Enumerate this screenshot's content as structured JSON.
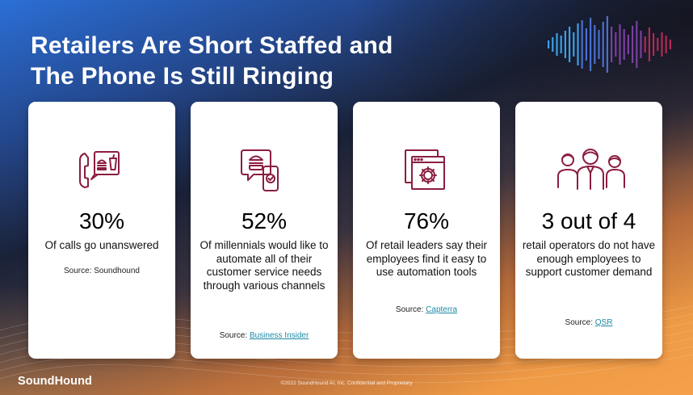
{
  "title": {
    "line1": "Retailers Are Short Staffed and",
    "line2": "The Phone Is Still Ringing"
  },
  "cards": [
    {
      "icon": "phone-order-icon",
      "stat": "30%",
      "desc": "Of calls go unanswered",
      "source_label": "Source: Soundhound",
      "source_link": ""
    },
    {
      "icon": "chat-burger-icon",
      "stat": "52%",
      "desc": "Of millennials would like to automate all of their customer service needs through various channels",
      "source_label": "Source: ",
      "source_link": "Business Insider"
    },
    {
      "icon": "browser-gear-icon",
      "stat": "76%",
      "desc": "Of retail leaders say their employees find it easy to use automation tools",
      "source_label": "Source: ",
      "source_link": "Capterra"
    },
    {
      "icon": "staff-group-icon",
      "stat": "3 out of 4",
      "desc": "retail operators do not have enough employees to support customer demand",
      "source_label": "Source: ",
      "source_link": "QSR"
    }
  ],
  "logo": "SoundHound",
  "footer": "©2022 SoundHound AI, Inc. Confidential and Proprietary",
  "colors": {
    "icon": "#8b1e3f",
    "link": "#1c8aa8",
    "card_bg": "#ffffff",
    "soundbars": [
      "#3aa0e8",
      "#4a6fd0",
      "#7a3fa0",
      "#b02a55"
    ]
  }
}
